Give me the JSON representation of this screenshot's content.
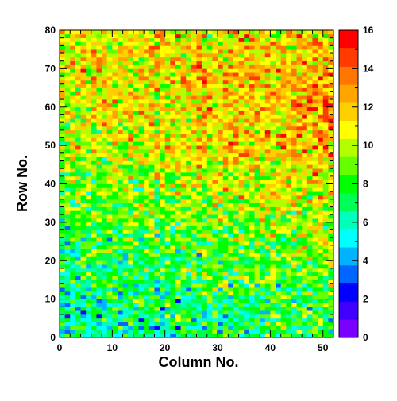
{
  "chart_data": {
    "type": "heatmap",
    "title": "",
    "xlabel": "Column No.",
    "ylabel": "Row No.",
    "xlim": [
      0,
      52
    ],
    "ylim": [
      0,
      80
    ],
    "x_ticks": [
      0,
      10,
      20,
      30,
      40,
      50
    ],
    "y_ticks": [
      0,
      10,
      20,
      30,
      40,
      50,
      60,
      70,
      80
    ],
    "columns": 52,
    "rows": 80,
    "color_scale": {
      "min": 0,
      "max": 16,
      "ticks": [
        0,
        2,
        4,
        6,
        8,
        10,
        12,
        14,
        16
      ],
      "colors": [
        "#7a00ff",
        "#3f00ff",
        "#0000ff",
        "#0066ff",
        "#00b3ff",
        "#00ffff",
        "#00ffbb",
        "#00ff55",
        "#00ff00",
        "#66ff00",
        "#b3ff00",
        "#ffff00",
        "#ffd000",
        "#ffa500",
        "#ff7700",
        "#ff3b00",
        "#ff0000"
      ]
    },
    "value_trend": {
      "description_rows": [
        0,
        10,
        20,
        30,
        40,
        50,
        60,
        70,
        80
      ],
      "mean_value_left": [
        6,
        6.5,
        7,
        8,
        9,
        10,
        10.5,
        11,
        10.5
      ],
      "mean_value_right": [
        7.5,
        8,
        9,
        10,
        11,
        12,
        12.5,
        12.5,
        11.5
      ],
      "noise_amplitude": 2.2
    }
  }
}
